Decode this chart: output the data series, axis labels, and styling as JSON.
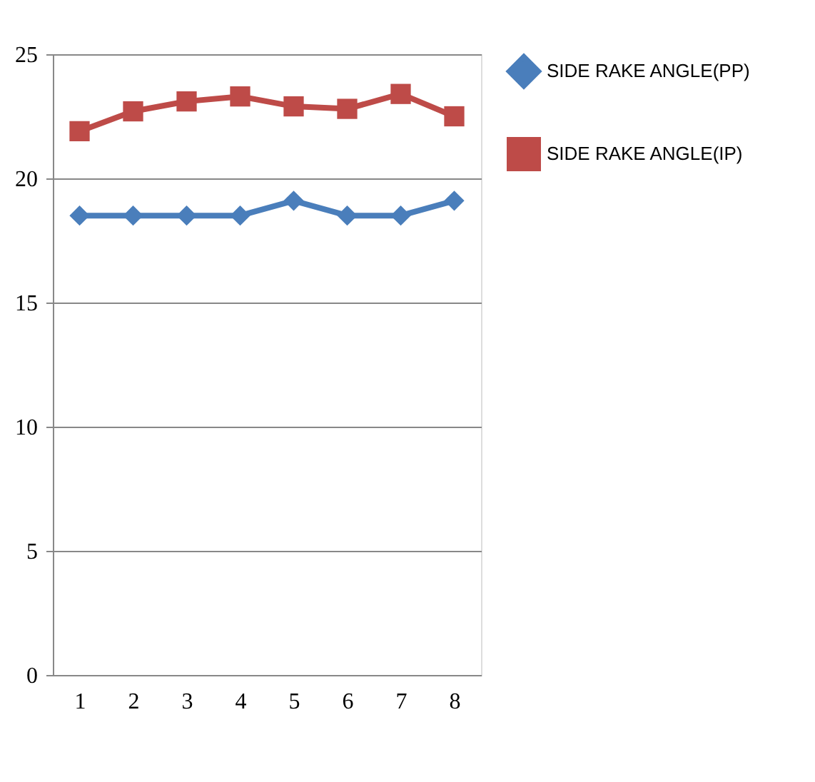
{
  "chart_data": {
    "type": "line",
    "categories": [
      "1",
      "2",
      "3",
      "4",
      "5",
      "6",
      "7",
      "8"
    ],
    "series": [
      {
        "name": "SIDE RAKE ANGLE(PP)",
        "color": "#4a7ebb",
        "marker": "diamond",
        "values": [
          18.5,
          18.5,
          18.5,
          18.5,
          19.1,
          18.5,
          18.5,
          19.1
        ]
      },
      {
        "name": "SIDE RAKE ANGLE(IP)",
        "color": "#be4b48",
        "marker": "square",
        "values": [
          21.9,
          22.7,
          23.1,
          23.3,
          22.9,
          22.8,
          23.4,
          22.5
        ]
      }
    ],
    "ylim": [
      0,
      25
    ],
    "yticks": [
      0,
      5,
      10,
      15,
      20,
      25
    ],
    "grid": "y",
    "legend": "right"
  }
}
